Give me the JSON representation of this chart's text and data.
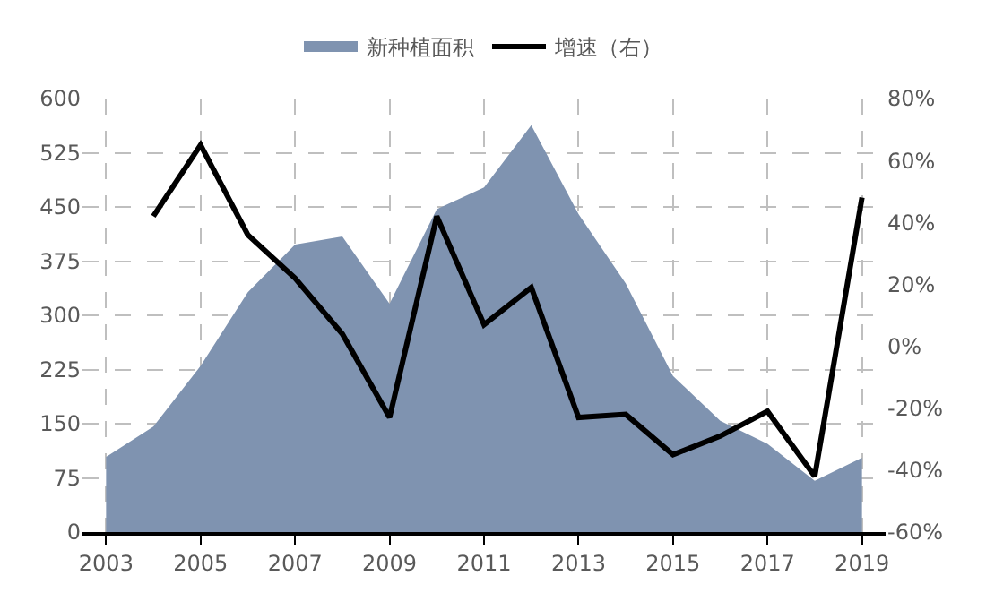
{
  "chart_data": {
    "type": "area",
    "categories": [
      "2003",
      null,
      "2005",
      null,
      "2007",
      null,
      "2009",
      null,
      "2011",
      null,
      "2013",
      null,
      "2015",
      null,
      "2017",
      null,
      "2019"
    ],
    "series": [
      {
        "name": "新种植面积",
        "color": "#7f93b0",
        "values": [
          104,
          146,
          230,
          332,
          398,
          409,
          316,
          447,
          477,
          563,
          440,
          344,
          216,
          154,
          122,
          71,
          103
        ]
      },
      {
        "name": "增速（右）",
        "type": "line",
        "axis": "y2",
        "color": "#000000",
        "values": [
          null,
          42,
          65,
          36,
          22,
          4,
          -23,
          42,
          7,
          19,
          -23,
          -22,
          -35,
          -29,
          -21,
          -42,
          48
        ]
      }
    ],
    "ylim": [
      0,
      600
    ],
    "yticks": [
      0,
      75,
      150,
      225,
      300,
      375,
      450,
      525,
      600
    ],
    "y2lim": [
      -60,
      80
    ],
    "y2ticks": [
      {
        "value": -60,
        "label": "-60%"
      },
      {
        "value": -40,
        "label": "-40%"
      },
      {
        "value": -20,
        "label": "-20%"
      },
      {
        "value": 0,
        "label": "0%"
      },
      {
        "value": 20,
        "label": "20%"
      },
      {
        "value": 40,
        "label": "40%"
      },
      {
        "value": 60,
        "label": "60%"
      },
      {
        "value": 80,
        "label": "80%"
      }
    ],
    "grid": true,
    "legend": "top",
    "marker": "none",
    "line_style": "solid"
  }
}
